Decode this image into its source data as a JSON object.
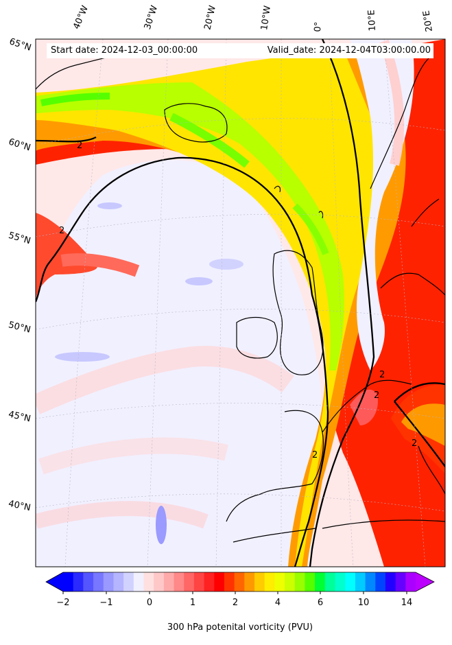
{
  "header": {
    "start_date": "Start date: 2024-12-03_00:00:00",
    "valid_date": "Valid_date: 2024-12-04T03:00:00.00"
  },
  "longitude_labels": [
    "40°W",
    "30°W",
    "20°W",
    "10°W",
    "0°",
    "10°E",
    "20°E"
  ],
  "latitude_labels": [
    "65°N",
    "60°N",
    "55°N",
    "50°N",
    "45°N",
    "40°N"
  ],
  "colorbar": {
    "ticks": [
      "−2",
      "−1",
      "0",
      "1",
      "2",
      "4",
      "6",
      "10",
      "14"
    ],
    "label": "300 hPa potenital vorticity (PVU)"
  },
  "contour_labels": [
    "2"
  ],
  "colors": {
    "negative": "#3a3aff",
    "zero": "#f0f0ff",
    "low_positive": "#ffd0d0",
    "two_pvu": "#ff0000",
    "four_pvu": "#ffa500",
    "six_pvu": "#ccff00",
    "high": "#00ff66"
  }
}
